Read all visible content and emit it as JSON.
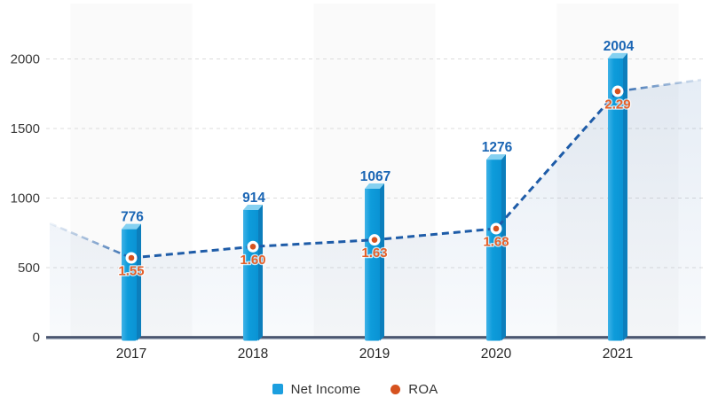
{
  "chart_data": {
    "type": "bar",
    "subtype": "bar-line-combo",
    "title": "",
    "categories": [
      "2017",
      "2018",
      "2019",
      "2020",
      "2021"
    ],
    "series": [
      {
        "name": "Net Income",
        "type": "bar",
        "values": [
          776,
          914,
          1067,
          1276,
          2004
        ]
      },
      {
        "name": "ROA",
        "type": "line",
        "values": [
          1.55,
          1.6,
          1.63,
          1.68,
          2.29
        ],
        "style": "dashed",
        "labels": [
          "1.55",
          "1.60",
          "1.63",
          "1.68",
          "2.29"
        ]
      }
    ],
    "xlabel": "",
    "ylabel": "",
    "y_axis": {
      "ticks": [
        0,
        500,
        1000,
        1500,
        2000
      ],
      "ylim": [
        0,
        2400
      ],
      "grid": "dashed"
    },
    "legend_position": "bottom-center",
    "background_bands": "alternating light bands behind odd categories",
    "colors": {
      "bar_front_light": "#3FB2E7",
      "bar_front": "#0E9CDB",
      "bar_front_deep": "#0A93D4",
      "bar_top": "#85D1F1",
      "bar_side": "#0C7EBC",
      "line": "#1E5CA8",
      "area_fill": "#1E5CA8",
      "dot_center": "#D6521F",
      "dot_ring": "#FFFFFF",
      "net_income_label": "#1A65B4",
      "roa_label": "#E5602A",
      "axis_line": "#3A4763",
      "axis_line_shadow": "#8A97AC",
      "gridline": "#DCDCDC",
      "band": "#FAFAFA",
      "tick_label": "#3A3A3A",
      "x_label": "#262626",
      "legend_text": "#333333",
      "legend_bar_swatch": "#1C9FDF",
      "legend_roa_dot": "#D6521F"
    }
  },
  "legend": {
    "net_income_label": "Net Income",
    "roa_label": "ROA"
  }
}
